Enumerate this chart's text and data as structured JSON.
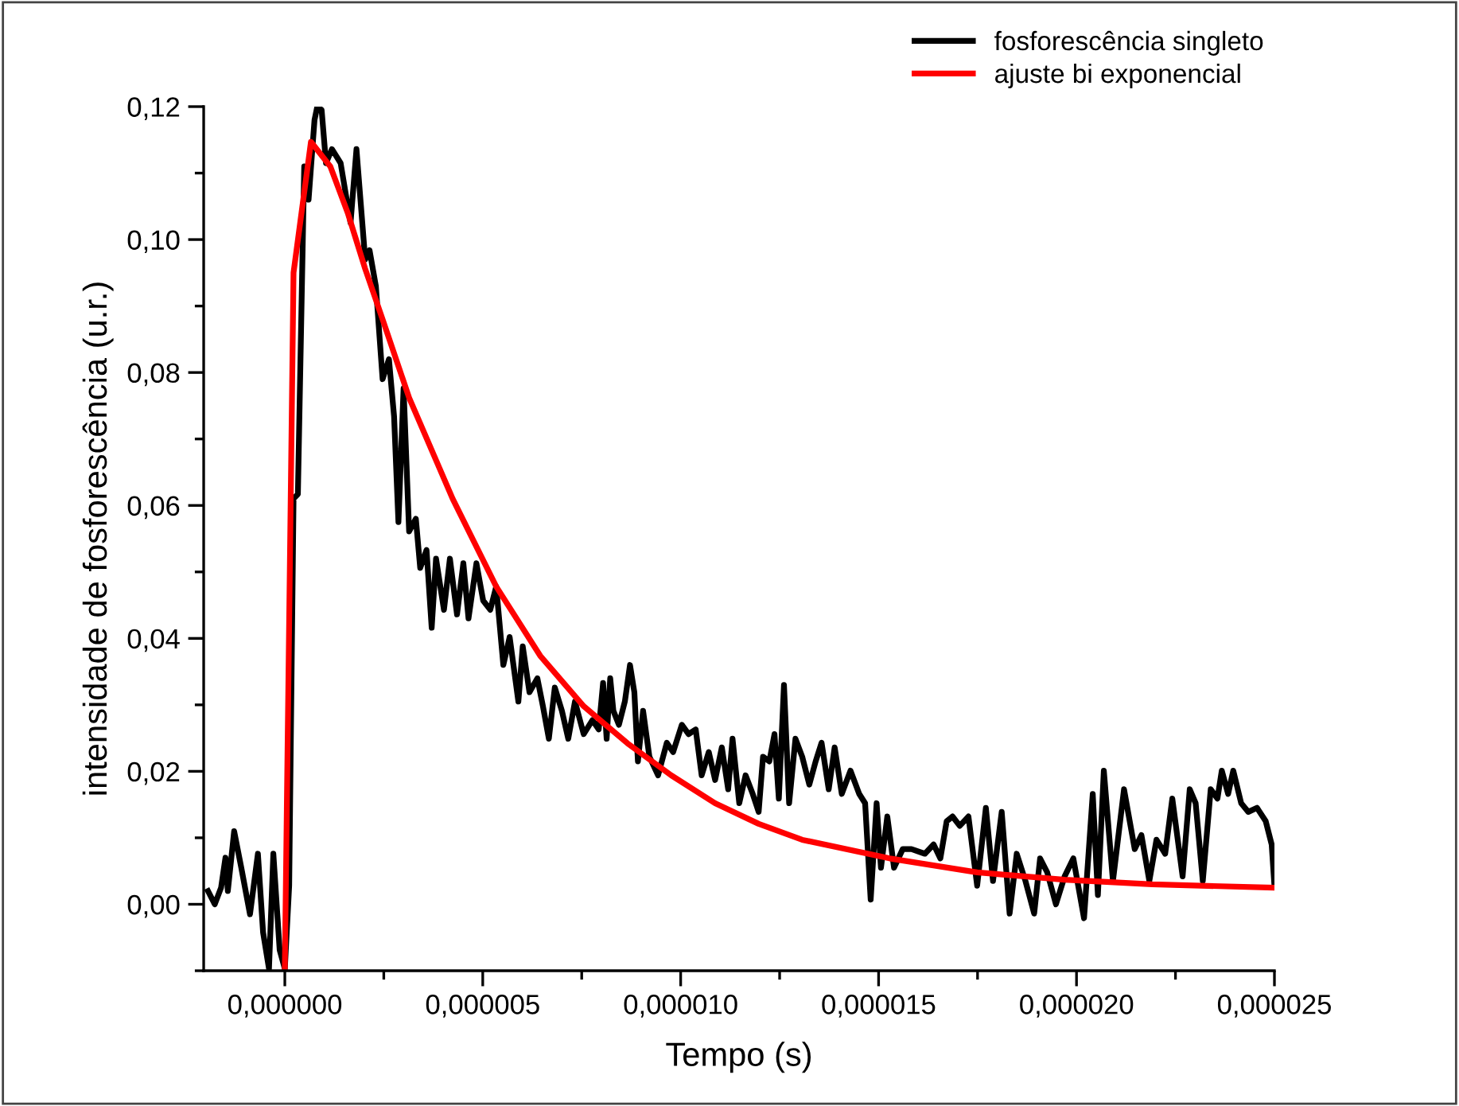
{
  "chart_data": {
    "type": "line",
    "xlabel": "Tempo (s)",
    "ylabel": "intensidade de fosforescência (u.r.)",
    "xlim": [
      -2.05e-06,
      2.5e-05
    ],
    "ylim": [
      -0.01,
      0.12
    ],
    "xticks": [
      {
        "value": 0,
        "label": "0,000000"
      },
      {
        "value": 5e-06,
        "label": "0,000005"
      },
      {
        "value": 1e-05,
        "label": "0,000010"
      },
      {
        "value": 1.5e-05,
        "label": "0,000015"
      },
      {
        "value": 2e-05,
        "label": "0,000020"
      },
      {
        "value": 2.5e-05,
        "label": "0,000025"
      }
    ],
    "yticks": [
      {
        "value": 0,
        "label": "0,00"
      },
      {
        "value": 0.02,
        "label": "0,02"
      },
      {
        "value": 0.04,
        "label": "0,04"
      },
      {
        "value": 0.06,
        "label": "0,06"
      },
      {
        "value": 0.08,
        "label": "0,08"
      },
      {
        "value": 0.1,
        "label": "0,10"
      },
      {
        "value": 0.12,
        "label": "0,12"
      }
    ],
    "grid": false,
    "legend": "top right",
    "marker": "none",
    "line_style": "solid",
    "series": [
      {
        "name": "fosforescência singleto",
        "color": "#000000",
        "x": [
          -1.94e-06,
          -1.77e-06,
          -1.61e-06,
          -1.5e-06,
          -1.44e-06,
          -1.28e-06,
          -1.1e-06,
          -8.8e-07,
          -6.8e-07,
          -5.5e-07,
          -4e-07,
          -2.9e-07,
          -1.3e-07,
          0,
          1.1e-07,
          2.2e-07,
          3.3e-07,
          4.9e-07,
          6e-07,
          7.5e-07,
          8.2e-07,
          9.3e-07,
          1.04e-06,
          1.19e-06,
          1.41e-06,
          1.66e-06,
          1.81e-06,
          2.03e-06,
          2.14e-06,
          2.3e-06,
          2.47e-06,
          2.63e-06,
          2.76e-06,
          2.87e-06,
          3e-06,
          3.14e-06,
          3.31e-06,
          3.42e-06,
          3.58e-06,
          3.71e-06,
          3.82e-06,
          4.02e-06,
          4.17e-06,
          4.35e-06,
          4.51e-06,
          4.64e-06,
          4.84e-06,
          5.01e-06,
          5.19e-06,
          5.34e-06,
          5.52e-06,
          5.68e-06,
          5.9e-06,
          6.01e-06,
          6.18e-06,
          6.38e-06,
          6.52e-06,
          6.67e-06,
          6.82e-06,
          7e-06,
          7.16e-06,
          7.33e-06,
          7.55e-06,
          7.77e-06,
          7.93e-06,
          8.04e-06,
          8.13e-06,
          8.22e-06,
          8.3e-06,
          8.44e-06,
          8.59e-06,
          8.72e-06,
          8.83e-06,
          8.92e-06,
          9.05e-06,
          9.21e-06,
          9.43e-06,
          9.65e-06,
          9.81e-06,
          1.003e-05,
          1.02e-05,
          1.038e-05,
          1.053e-05,
          1.071e-05,
          1.087e-05,
          1.104e-05,
          1.12e-05,
          1.131e-05,
          1.148e-05,
          1.164e-05,
          1.182e-05,
          1.197e-05,
          1.208e-05,
          1.224e-05,
          1.237e-05,
          1.248e-05,
          1.261e-05,
          1.274e-05,
          1.29e-05,
          1.307e-05,
          1.325e-05,
          1.341e-05,
          1.356e-05,
          1.374e-05,
          1.389e-05,
          1.407e-05,
          1.429e-05,
          1.451e-05,
          1.466e-05,
          1.48e-05,
          1.495e-05,
          1.506e-05,
          1.522e-05,
          1.539e-05,
          1.561e-05,
          1.583e-05,
          1.617e-05,
          1.639e-05,
          1.656e-05,
          1.672e-05,
          1.687e-05,
          1.705e-05,
          1.727e-05,
          1.749e-05,
          1.771e-05,
          1.789e-05,
          1.811e-05,
          1.831e-05,
          1.849e-05,
          1.871e-05,
          1.893e-05,
          1.908e-05,
          1.926e-05,
          1.948e-05,
          1.97e-05,
          1.992e-05,
          2.019e-05,
          2.041e-05,
          2.054e-05,
          2.069e-05,
          2.092e-05,
          2.12e-05,
          2.147e-05,
          2.164e-05,
          2.184e-05,
          2.202e-05,
          2.224e-05,
          2.242e-05,
          2.268e-05,
          2.286e-05,
          2.301e-05,
          2.319e-05,
          2.339e-05,
          2.356e-05,
          2.367e-05,
          2.383e-05,
          2.396e-05,
          2.416e-05,
          2.434e-05,
          2.456e-05,
          2.478e-05,
          2.493e-05,
          2.5e-05
        ],
        "values": [
          0.002,
          0.0,
          0.0025,
          0.007,
          0.002,
          0.011,
          0.0055,
          -0.0015,
          0.0076,
          -0.0042,
          -0.0097,
          0.0076,
          -0.0069,
          -0.0097,
          0.0028,
          0.061,
          0.0617,
          0.111,
          0.106,
          0.118,
          0.12,
          0.1195,
          0.1115,
          0.1136,
          0.1115,
          0.1025,
          0.1136,
          0.097,
          0.0984,
          0.093,
          0.079,
          0.082,
          0.0734,
          0.0575,
          0.0776,
          0.0561,
          0.058,
          0.0506,
          0.0533,
          0.0416,
          0.052,
          0.0443,
          0.052,
          0.0436,
          0.0513,
          0.043,
          0.0513,
          0.0457,
          0.0443,
          0.0478,
          0.036,
          0.0402,
          0.0305,
          0.0388,
          0.0319,
          0.034,
          0.0298,
          0.0249,
          0.0326,
          0.0291,
          0.0249,
          0.0305,
          0.0256,
          0.0277,
          0.0263,
          0.0333,
          0.0249,
          0.034,
          0.0291,
          0.027,
          0.0305,
          0.036,
          0.0319,
          0.0215,
          0.0291,
          0.0222,
          0.0194,
          0.0243,
          0.0229,
          0.027,
          0.0256,
          0.0263,
          0.0194,
          0.0229,
          0.0187,
          0.0236,
          0.0173,
          0.0249,
          0.0152,
          0.0194,
          0.0166,
          0.0139,
          0.0222,
          0.0215,
          0.0256,
          0.0159,
          0.033,
          0.0152,
          0.0249,
          0.0222,
          0.018,
          0.0215,
          0.0243,
          0.0173,
          0.0236,
          0.0166,
          0.0201,
          0.0166,
          0.0152,
          0.0007,
          0.0152,
          0.0055,
          0.0132,
          0.0055,
          0.0083,
          0.0083,
          0.0076,
          0.009,
          0.0069,
          0.0125,
          0.0132,
          0.0118,
          0.0132,
          0.0028,
          0.0145,
          0.0035,
          0.0139,
          -0.0014,
          0.0076,
          0.0035,
          -0.0014,
          0.0069,
          0.0048,
          0.0,
          0.0042,
          0.0069,
          -0.0021,
          0.0166,
          0.0014,
          0.0201,
          0.0035,
          0.0173,
          0.0083,
          0.0104,
          0.0035,
          0.0097,
          0.0076,
          0.0159,
          0.0042,
          0.0173,
          0.0152,
          0.0035,
          0.0173,
          0.0159,
          0.0201,
          0.0166,
          0.0201,
          0.0152,
          0.0139,
          0.0145,
          0.0125,
          0.009,
          0.0028
        ]
      },
      {
        "name": "ajuste bi exponencial",
        "color": "#ff0000",
        "x": [
          0,
          2.2e-07,
          6.6e-07,
          1.15e-06,
          1.59e-06,
          2.03e-06,
          2.47e-06,
          3.14e-06,
          4.24e-06,
          5.34e-06,
          6.45e-06,
          7.55e-06,
          8.66e-06,
          9.76e-06,
          1.087e-05,
          1.197e-05,
          1.307e-05,
          1.528e-05,
          1.749e-05,
          1.97e-05,
          2.191e-05,
          2.493e-05
        ],
        "values": [
          -0.0097,
          0.095,
          0.1147,
          0.111,
          0.104,
          0.0956,
          0.088,
          0.0762,
          0.061,
          0.0478,
          0.0374,
          0.0298,
          0.0242,
          0.0194,
          0.0152,
          0.0121,
          0.0097,
          0.0069,
          0.0048,
          0.0037,
          0.003,
          0.0025
        ]
      }
    ]
  }
}
